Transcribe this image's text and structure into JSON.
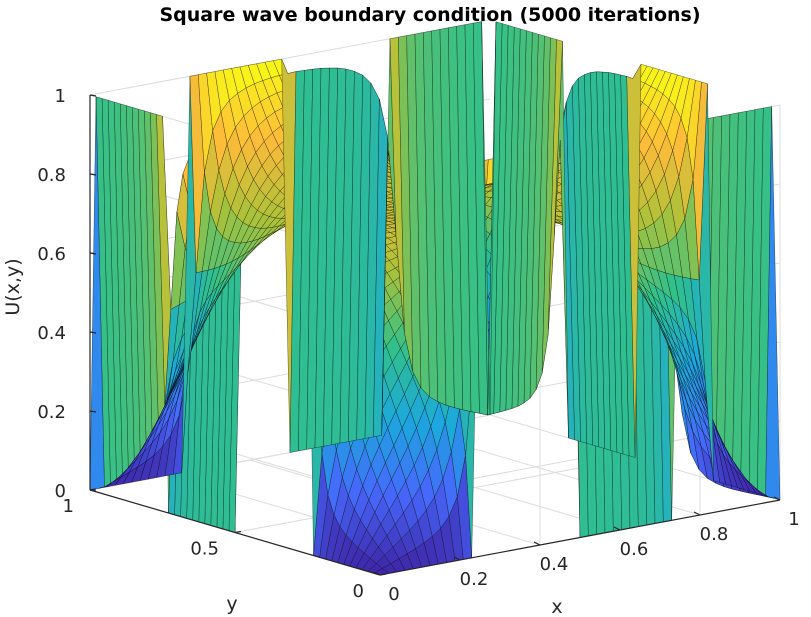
{
  "figure": {
    "title": "Square wave boundary condition (5000 iterations)"
  },
  "chart_data": {
    "type": "surface",
    "title": "Square wave boundary condition (5000 iterations)",
    "xlabel": "x",
    "ylabel": "y",
    "zlabel": "U(x,y)",
    "xlim": [
      0,
      1
    ],
    "ylim": [
      0,
      1
    ],
    "zlim": [
      0,
      1
    ],
    "x_ticks": [
      "0",
      "0.2",
      "0.4",
      "0.6",
      "0.8",
      "1"
    ],
    "y_ticks": [
      "0",
      "0.5",
      "1"
    ],
    "z_ticks": [
      "0",
      "0.2",
      "0.4",
      "0.6",
      "0.8",
      "1"
    ],
    "grid": true,
    "colormap": "parula",
    "boundary_condition": {
      "form": "square wave",
      "pulses_per_edge": 2,
      "high_value": 1,
      "low_value": 0
    },
    "iterations": 5000
  },
  "colors": {
    "axis": "#262626",
    "grid": "#dcdcdc",
    "mesh": "#000000",
    "colormap_stops": [
      "#3e26a8",
      "#4668fc",
      "#1ca8de",
      "#31c08a",
      "#abc239",
      "#fdbb3a",
      "#f9fb14"
    ]
  }
}
